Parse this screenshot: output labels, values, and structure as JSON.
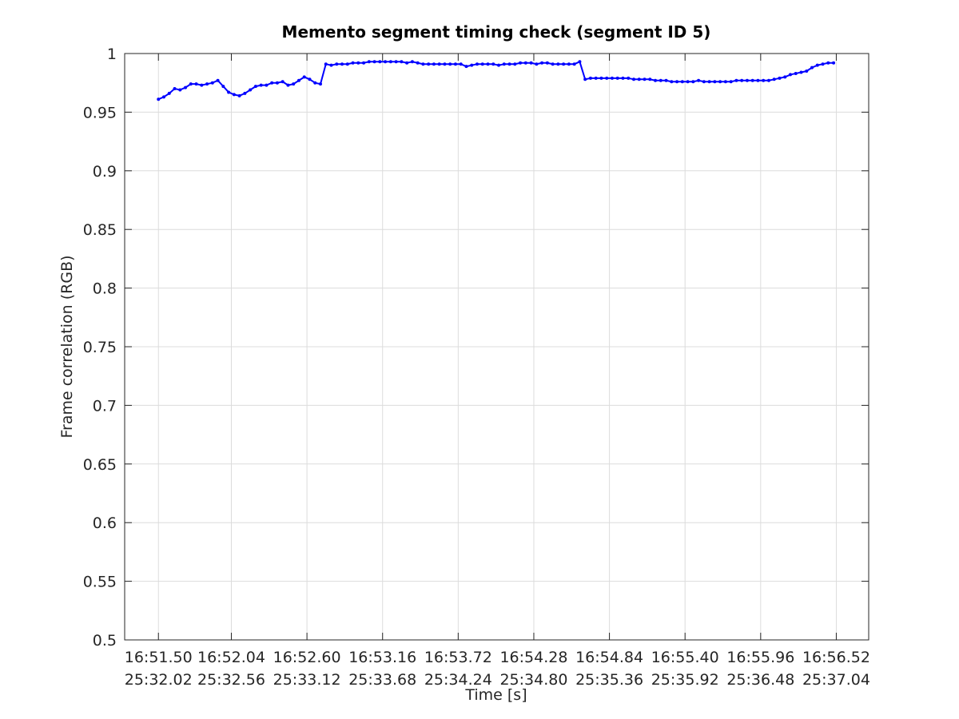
{
  "chart_data": {
    "type": "line",
    "title": "Memento segment timing check (segment ID 5)",
    "x_label": "Time [s]",
    "y_label": "Frame correlation (RGB)",
    "x": [
      1011.5,
      1011.54,
      1011.58,
      1011.62,
      1011.66,
      1011.7,
      1011.74,
      1011.78,
      1011.82,
      1011.86,
      1011.9,
      1011.94,
      1011.98,
      1012.02,
      1012.06,
      1012.1,
      1012.14,
      1012.18,
      1012.22,
      1012.26,
      1012.3,
      1012.34,
      1012.38,
      1012.42,
      1012.46,
      1012.5,
      1012.54,
      1012.58,
      1012.62,
      1012.66,
      1012.7,
      1012.74,
      1012.78,
      1012.82,
      1012.86,
      1012.9,
      1012.94,
      1012.98,
      1013.02,
      1013.06,
      1013.1,
      1013.14,
      1013.18,
      1013.22,
      1013.26,
      1013.3,
      1013.34,
      1013.38,
      1013.42,
      1013.46,
      1013.5,
      1013.54,
      1013.58,
      1013.62,
      1013.66,
      1013.7,
      1013.74,
      1013.78,
      1013.82,
      1013.86,
      1013.9,
      1013.94,
      1013.98,
      1014.02,
      1014.06,
      1014.1,
      1014.14,
      1014.18,
      1014.22,
      1014.26,
      1014.3,
      1014.34,
      1014.38,
      1014.42,
      1014.46,
      1014.5,
      1014.54,
      1014.58,
      1014.62,
      1014.66,
      1014.7,
      1014.74,
      1014.78,
      1014.82,
      1014.86,
      1014.9,
      1014.94,
      1014.98,
      1015.02,
      1015.06,
      1015.1,
      1015.14,
      1015.18,
      1015.22,
      1015.26,
      1015.3,
      1015.34,
      1015.38,
      1015.42,
      1015.46,
      1015.5,
      1015.54,
      1015.58,
      1015.62,
      1015.66,
      1015.7,
      1015.74,
      1015.78,
      1015.82,
      1015.86,
      1015.9,
      1015.94,
      1015.98,
      1016.02,
      1016.06,
      1016.1,
      1016.14,
      1016.18,
      1016.22,
      1016.26,
      1016.3,
      1016.34,
      1016.38,
      1016.42,
      1016.46,
      1016.5
    ],
    "values": [
      0.961,
      0.963,
      0.966,
      0.97,
      0.969,
      0.971,
      0.974,
      0.974,
      0.973,
      0.974,
      0.975,
      0.977,
      0.972,
      0.967,
      0.965,
      0.964,
      0.966,
      0.969,
      0.972,
      0.973,
      0.973,
      0.975,
      0.975,
      0.976,
      0.973,
      0.974,
      0.977,
      0.98,
      0.978,
      0.975,
      0.974,
      0.991,
      0.99,
      0.991,
      0.991,
      0.991,
      0.992,
      0.992,
      0.992,
      0.993,
      0.993,
      0.993,
      0.993,
      0.993,
      0.993,
      0.993,
      0.992,
      0.993,
      0.992,
      0.991,
      0.991,
      0.991,
      0.991,
      0.991,
      0.991,
      0.991,
      0.991,
      0.989,
      0.99,
      0.991,
      0.991,
      0.991,
      0.991,
      0.99,
      0.991,
      0.991,
      0.991,
      0.992,
      0.992,
      0.992,
      0.991,
      0.992,
      0.992,
      0.991,
      0.991,
      0.991,
      0.991,
      0.991,
      0.993,
      0.978,
      0.979,
      0.979,
      0.979,
      0.979,
      0.979,
      0.979,
      0.979,
      0.979,
      0.978,
      0.978,
      0.978,
      0.978,
      0.977,
      0.977,
      0.977,
      0.976,
      0.976,
      0.976,
      0.976,
      0.976,
      0.977,
      0.976,
      0.976,
      0.976,
      0.976,
      0.976,
      0.976,
      0.977,
      0.977,
      0.977,
      0.977,
      0.977,
      0.977,
      0.977,
      0.978,
      0.979,
      0.98,
      0.982,
      0.983,
      0.984,
      0.985,
      0.988,
      0.99,
      0.991,
      0.992,
      0.992
    ],
    "color": "#0000ff",
    "xlim": [
      1011.25,
      1016.76
    ],
    "ylim": [
      0.5,
      1
    ],
    "xticks": [
      {
        "value": 1011.5,
        "label": "16:51.50\n25:32.02"
      },
      {
        "value": 1012.04,
        "label": "16:52.04\n25:32.56"
      },
      {
        "value": 1012.6,
        "label": "16:52.60\n25:33.12"
      },
      {
        "value": 1013.16,
        "label": "16:53.16\n25:33.68"
      },
      {
        "value": 1013.72,
        "label": "16:53.72\n25:34.24"
      },
      {
        "value": 1014.28,
        "label": "16:54.28\n25:34.80"
      },
      {
        "value": 1014.84,
        "label": "16:54.84\n25:35.36"
      },
      {
        "value": 1015.4,
        "label": "16:55.40\n25:35.92"
      },
      {
        "value": 1015.96,
        "label": "16:55.96\n25:36.48"
      },
      {
        "value": 1016.52,
        "label": "16:56.52\n25:37.04"
      }
    ],
    "yticks": [
      0.5,
      0.55,
      0.6,
      0.65,
      0.7,
      0.75,
      0.8,
      0.85,
      0.9,
      0.95,
      1
    ],
    "grid": true
  }
}
